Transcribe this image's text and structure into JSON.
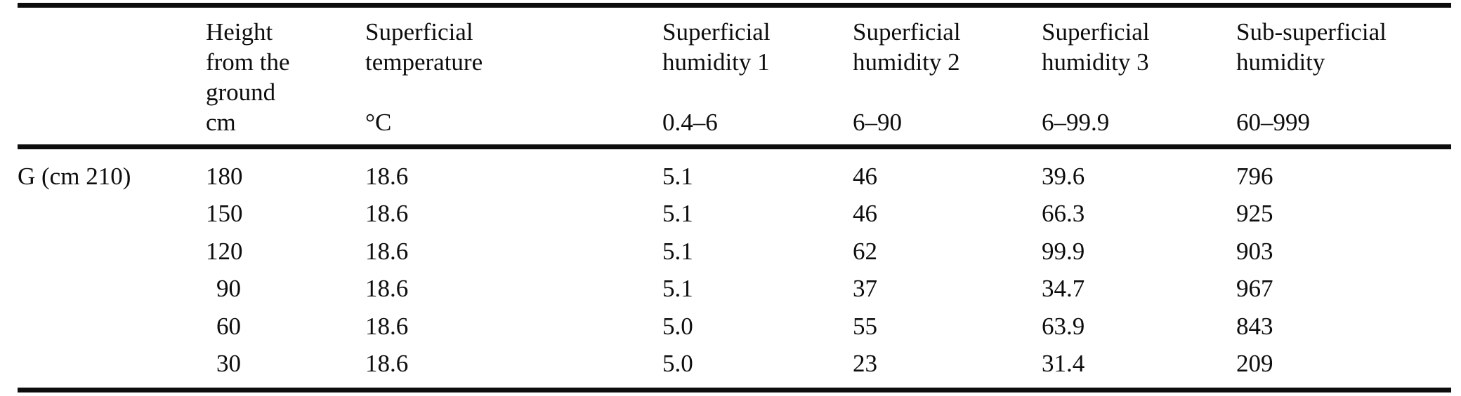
{
  "table": {
    "group_label": "G (cm 210)",
    "header": {
      "columns": [
        {
          "id": "row_label",
          "lines": [],
          "unit": ""
        },
        {
          "id": "height_from_ground",
          "lines": [
            "Height",
            "from the",
            "ground"
          ],
          "unit": "cm"
        },
        {
          "id": "superficial_temperature",
          "lines": [
            "Superficial",
            "temperature"
          ],
          "unit": "°C"
        },
        {
          "id": "superficial_humidity_1",
          "lines": [
            "Superficial",
            "humidity 1"
          ],
          "unit": "0.4–6"
        },
        {
          "id": "superficial_humidity_2",
          "lines": [
            "Superficial",
            "humidity 2"
          ],
          "unit": "6–90"
        },
        {
          "id": "superficial_humidity_3",
          "lines": [
            "Superficial",
            "humidity 3"
          ],
          "unit": "6–99.9"
        },
        {
          "id": "sub_superficial_humidity",
          "lines": [
            "Sub-superficial",
            "humidity"
          ],
          "unit": "60–999"
        }
      ]
    },
    "rows": [
      {
        "label": "G (cm 210)",
        "height": "180",
        "temperature": "18.6",
        "humidity1": "5.1",
        "humidity2": "46",
        "humidity3": "39.6",
        "sub_humidity": "796"
      },
      {
        "label": "",
        "height": "150",
        "temperature": "18.6",
        "humidity1": "5.1",
        "humidity2": "46",
        "humidity3": "66.3",
        "sub_humidity": "925"
      },
      {
        "label": "",
        "height": "120",
        "temperature": "18.6",
        "humidity1": "5.1",
        "humidity2": "62",
        "humidity3": "99.9",
        "sub_humidity": "903"
      },
      {
        "label": "",
        "height": "90",
        "temperature": "18.6",
        "humidity1": "5.1",
        "humidity2": "37",
        "humidity3": "34.7",
        "sub_humidity": "967"
      },
      {
        "label": "",
        "height": "60",
        "temperature": "18.6",
        "humidity1": "5.0",
        "humidity2": "55",
        "humidity3": "63.9",
        "sub_humidity": "843"
      },
      {
        "label": "",
        "height": "30",
        "temperature": "18.6",
        "humidity1": "5.0",
        "humidity2": "23",
        "humidity3": "31.4",
        "sub_humidity": "209"
      }
    ],
    "colors": {
      "background": "#ffffff",
      "text": "#0d0d0d",
      "rule": "#0d0d0d"
    }
  }
}
